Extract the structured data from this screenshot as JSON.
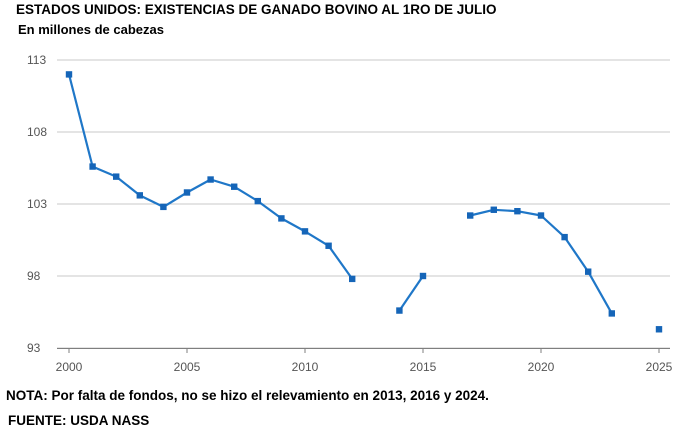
{
  "header": {
    "title": "ESTADOS UNIDOS: EXISTENCIAS DE GANADO BOVINO AL 1RO DE JULIO",
    "subtitle": "En millones de cabezas"
  },
  "footer": {
    "note": "NOTA: Por falta de fondos, no se hizo el relevamiento en 2013, 2016 y 2024.",
    "source": "FUENTE: USDA NASS"
  },
  "chart_data": {
    "type": "line",
    "title": "ESTADOS UNIDOS: EXISTENCIAS DE GANADO BOVINO AL 1RO DE JULIO",
    "subtitle": "En millones de cabezas",
    "xlim": [
      2000,
      2025
    ],
    "ylim": [
      93,
      113
    ],
    "x_ticks": [
      2000,
      2005,
      2010,
      2015,
      2020,
      2025
    ],
    "y_ticks": [
      93,
      98,
      103,
      108,
      113
    ],
    "grid": "horizontal",
    "legend": "none",
    "color": "#1f77c8",
    "segments": [
      [
        [
          2000,
          112.0
        ],
        [
          2001,
          105.6
        ],
        [
          2002,
          104.9
        ],
        [
          2003,
          103.6
        ],
        [
          2004,
          102.8
        ],
        [
          2005,
          103.8
        ],
        [
          2006,
          104.7
        ],
        [
          2007,
          104.2
        ],
        [
          2008,
          103.2
        ],
        [
          2009,
          102.0
        ],
        [
          2010,
          101.1
        ],
        [
          2011,
          100.1
        ],
        [
          2012,
          97.8
        ]
      ],
      [
        [
          2014,
          95.6
        ],
        [
          2015,
          98.0
        ]
      ],
      [
        [
          2017,
          102.2
        ],
        [
          2018,
          102.6
        ],
        [
          2019,
          102.5
        ],
        [
          2020,
          102.2
        ],
        [
          2021,
          100.7
        ],
        [
          2022,
          98.3
        ],
        [
          2023,
          95.4
        ]
      ],
      [
        [
          2025,
          94.3
        ]
      ]
    ]
  }
}
